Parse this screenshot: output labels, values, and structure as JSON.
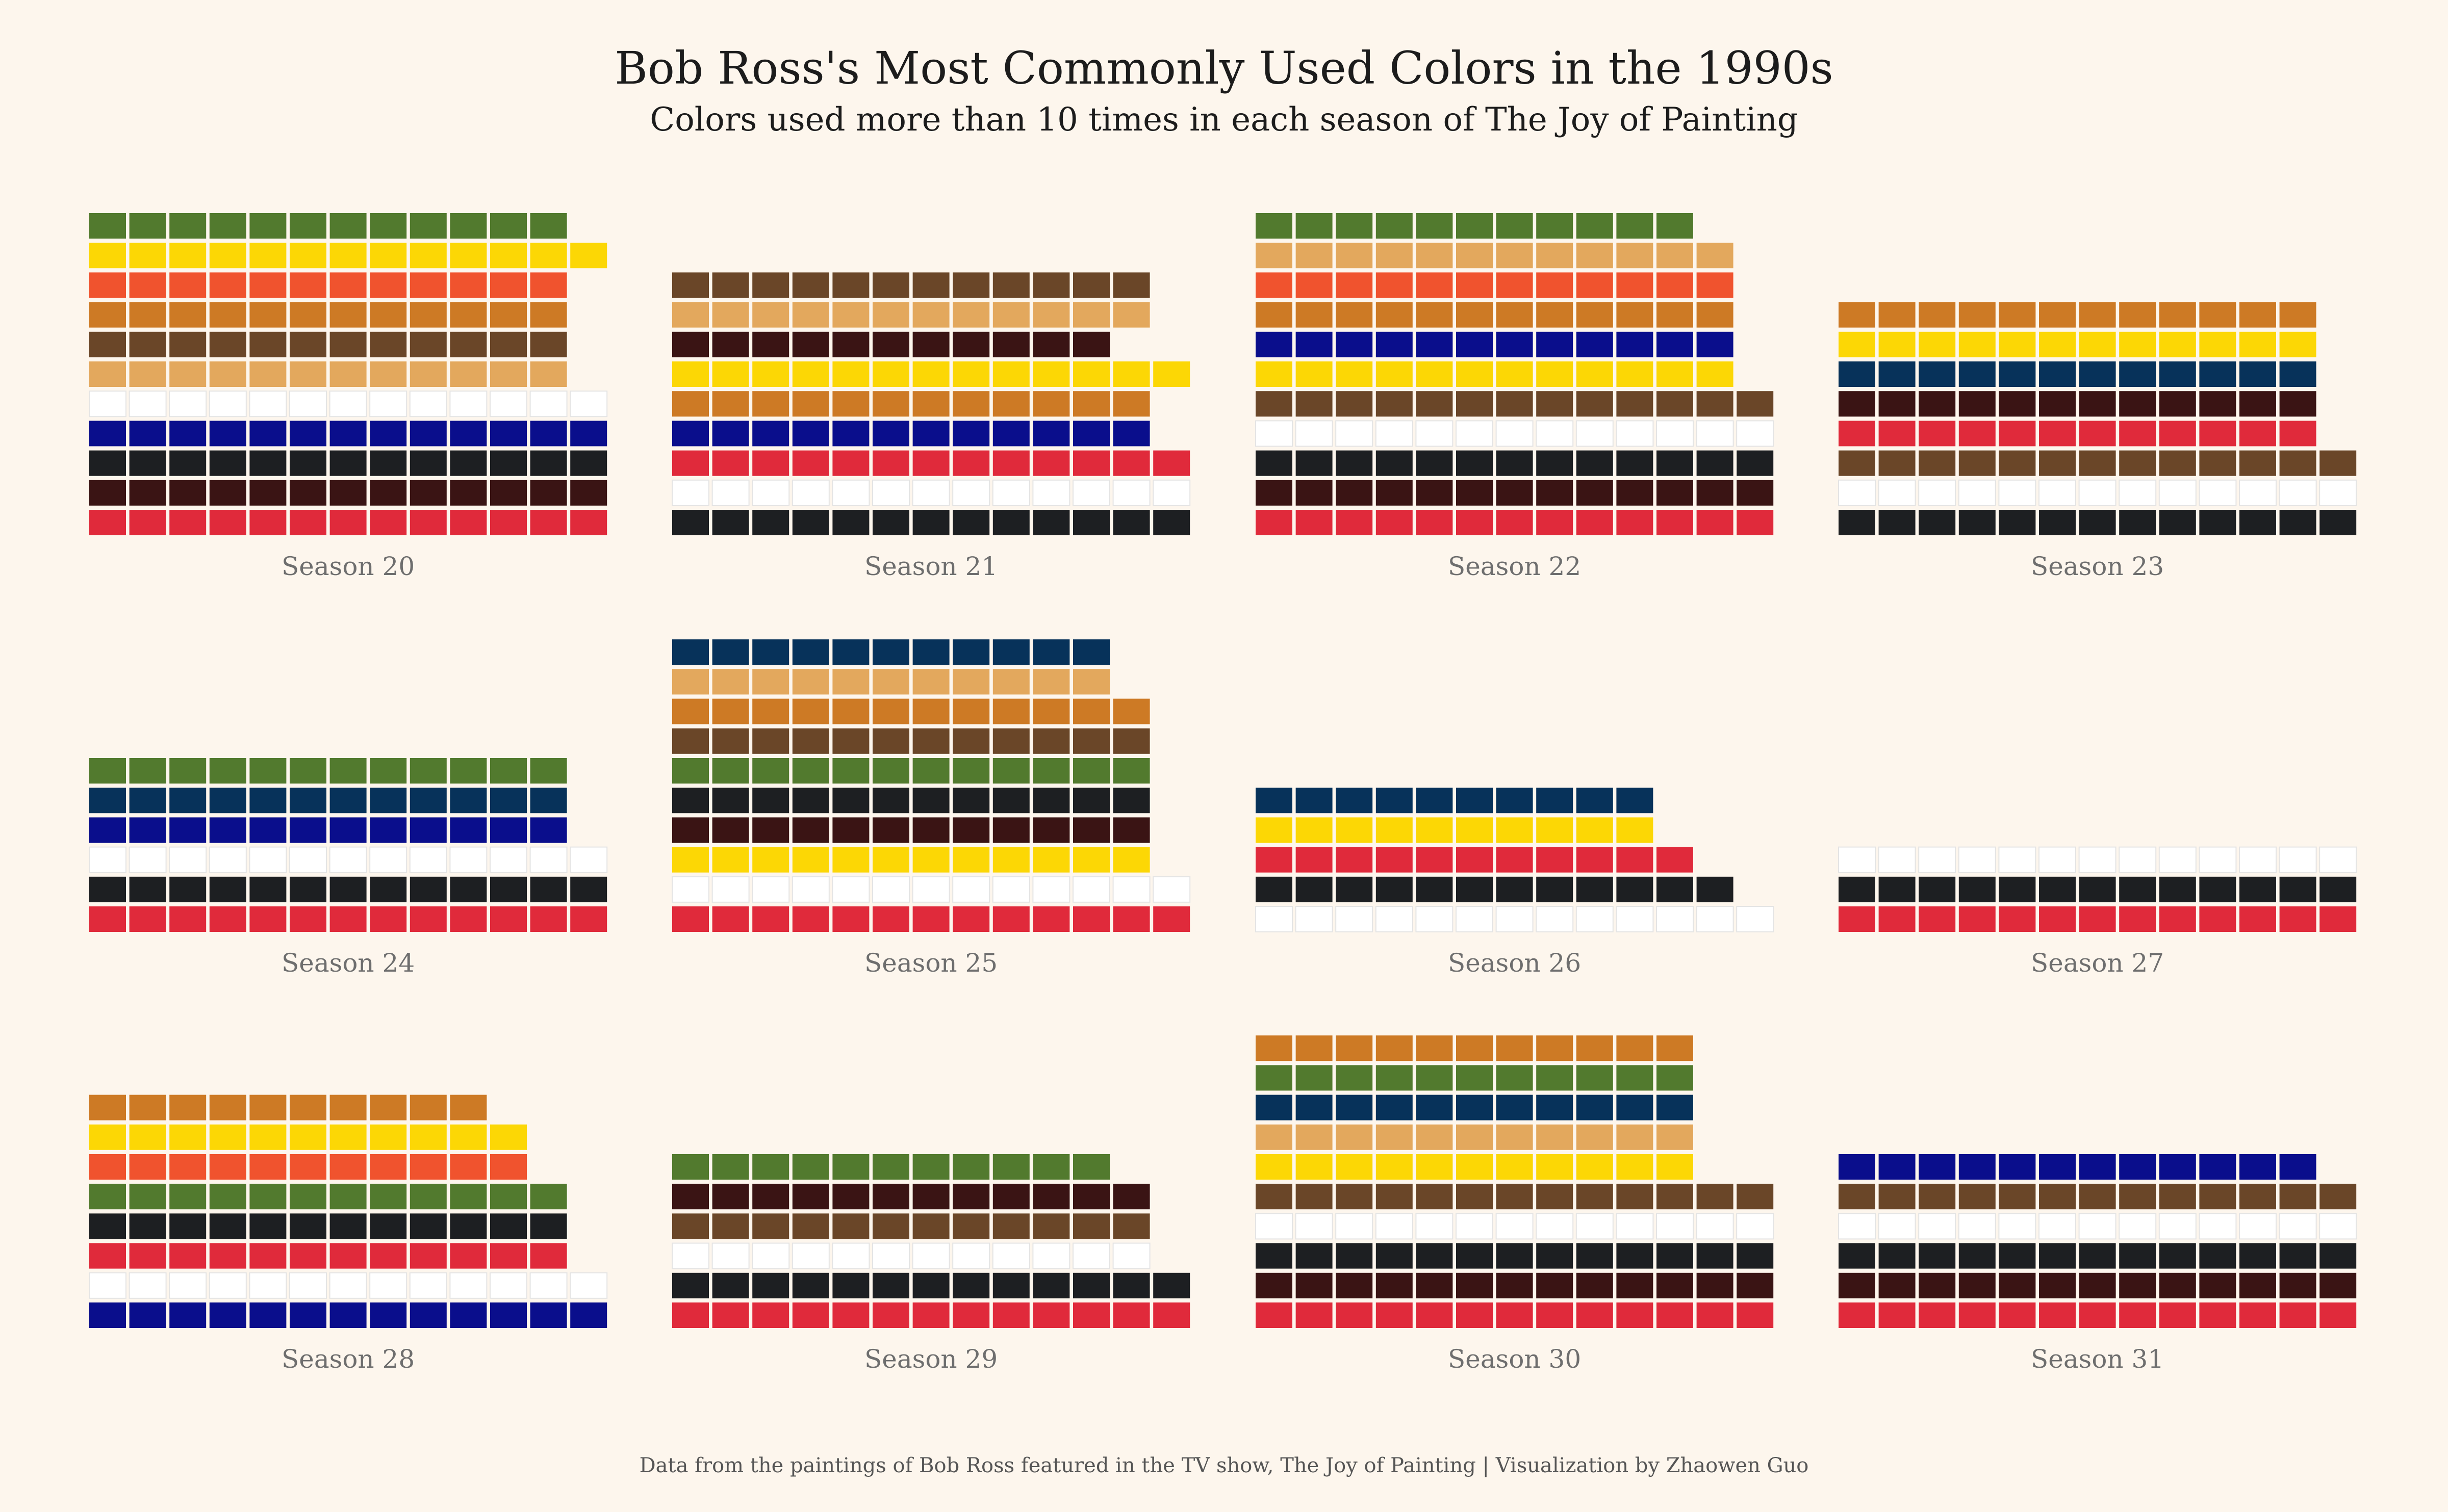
{
  "title": "Bob Ross's Most Commonly Used Colors in the 1990s",
  "subtitle": "Colors used more than 10 times in each season of The Joy of Painting",
  "caption": "Data from the paintings of Bob Ross featured in the TV show, The Joy of Painting | Visualization by Zhaowen Guo",
  "chart_data": {
    "type": "waffle",
    "columns_per_row": 13,
    "colors": {
      "Alizarin Crimson": "#4e1500",
      "Bright Red": "#db0000",
      "Burnt Umber": "#8a3324",
      "Cadmium Yellow": "#ffec00",
      "Dark Sienna": "#5f2e1f",
      "Indian Yellow": "#ffb800",
      "Liquid Black": "#000000",
      "Liquid Clear": "#ffffff",
      "Midnight Black": "#000000",
      "Phthalo Blue": "#0c0040",
      "Phthalo Green": "#102e3c",
      "Prussian Blue": "#021e44",
      "Sap Green": "#0a3410",
      "Titanium White": "#ffffff",
      "Van Dyke Brown": "#221b15",
      "Yellow Ochre": "#c79b00",
      "Black Gesso": "#000000",
      "White": "#ffffff",
      "Black": "#1d1f22",
      "Red": "#e02a3b",
      "Sap": "#527a2e",
      "Yellow": "#fcd705",
      "Orange": "#f0532e",
      "Ochre": "#cd7a25",
      "Brown": "#6a4628",
      "Sand": "#e3a85d",
      "Blue": "#0a0e8c",
      "Navy": "#07325a",
      "Maroon": "#3a1414"
    },
    "seasons": [
      {
        "label": "Season 20",
        "stacks": [
          {
            "color": "Red",
            "count": 13
          },
          {
            "color": "Maroon",
            "count": 13
          },
          {
            "color": "Black",
            "count": 13
          },
          {
            "color": "Blue",
            "count": 13
          },
          {
            "color": "White",
            "count": 13
          },
          {
            "color": "Sand",
            "count": 12
          },
          {
            "color": "Brown",
            "count": 12
          },
          {
            "color": "Ochre",
            "count": 12
          },
          {
            "color": "Orange",
            "count": 12
          },
          {
            "color": "Yellow",
            "count": 13
          },
          {
            "color": "Sap",
            "count": 12
          }
        ]
      },
      {
        "label": "Season 21",
        "stacks": [
          {
            "color": "Black",
            "count": 13
          },
          {
            "color": "White",
            "count": 13
          },
          {
            "color": "Red",
            "count": 13
          },
          {
            "color": "Blue",
            "count": 12
          },
          {
            "color": "Ochre",
            "count": 12
          },
          {
            "color": "Yellow",
            "count": 13
          },
          {
            "color": "Maroon",
            "count": 11
          },
          {
            "color": "Sand",
            "count": 12
          },
          {
            "color": "Brown",
            "count": 12
          }
        ]
      },
      {
        "label": "Season 22",
        "stacks": [
          {
            "color": "Red",
            "count": 13
          },
          {
            "color": "Maroon",
            "count": 13
          },
          {
            "color": "Black",
            "count": 13
          },
          {
            "color": "White",
            "count": 13
          },
          {
            "color": "Brown",
            "count": 13
          },
          {
            "color": "Yellow",
            "count": 12
          },
          {
            "color": "Blue",
            "count": 12
          },
          {
            "color": "Ochre",
            "count": 12
          },
          {
            "color": "Orange",
            "count": 12
          },
          {
            "color": "Sand",
            "count": 12
          },
          {
            "color": "Sap",
            "count": 11
          }
        ]
      },
      {
        "label": "Season 23",
        "stacks": [
          {
            "color": "Black",
            "count": 13
          },
          {
            "color": "White",
            "count": 13
          },
          {
            "color": "Brown",
            "count": 13
          },
          {
            "color": "Red",
            "count": 12
          },
          {
            "color": "Maroon",
            "count": 12
          },
          {
            "color": "Navy",
            "count": 12
          },
          {
            "color": "Yellow",
            "count": 12
          },
          {
            "color": "Ochre",
            "count": 12
          }
        ]
      },
      {
        "label": "Season 24",
        "stacks": [
          {
            "color": "Red",
            "count": 13
          },
          {
            "color": "Black",
            "count": 13
          },
          {
            "color": "White",
            "count": 13
          },
          {
            "color": "Blue",
            "count": 12
          },
          {
            "color": "Navy",
            "count": 12
          },
          {
            "color": "Sap",
            "count": 12
          }
        ]
      },
      {
        "label": "Season 25",
        "stacks": [
          {
            "color": "Red",
            "count": 13
          },
          {
            "color": "White",
            "count": 13
          },
          {
            "color": "Yellow",
            "count": 12
          },
          {
            "color": "Maroon",
            "count": 12
          },
          {
            "color": "Black",
            "count": 12
          },
          {
            "color": "Sap",
            "count": 12
          },
          {
            "color": "Brown",
            "count": 12
          },
          {
            "color": "Ochre",
            "count": 12
          },
          {
            "color": "Sand",
            "count": 11
          },
          {
            "color": "Navy",
            "count": 11
          }
        ]
      },
      {
        "label": "Season 26",
        "stacks": [
          {
            "color": "White",
            "count": 13
          },
          {
            "color": "Black",
            "count": 12
          },
          {
            "color": "Red",
            "count": 11
          },
          {
            "color": "Yellow",
            "count": 10
          },
          {
            "color": "Navy",
            "count": 10
          }
        ]
      },
      {
        "label": "Season 27",
        "stacks": [
          {
            "color": "Red",
            "count": 13
          },
          {
            "color": "Black",
            "count": 13
          },
          {
            "color": "White",
            "count": 13
          }
        ]
      },
      {
        "label": "Season 28",
        "stacks": [
          {
            "color": "Blue",
            "count": 13
          },
          {
            "color": "White",
            "count": 13
          },
          {
            "color": "Red",
            "count": 12
          },
          {
            "color": "Black",
            "count": 12
          },
          {
            "color": "Sap",
            "count": 12
          },
          {
            "color": "Orange",
            "count": 11
          },
          {
            "color": "Yellow",
            "count": 11
          },
          {
            "color": "Ochre",
            "count": 10
          }
        ]
      },
      {
        "label": "Season 29",
        "stacks": [
          {
            "color": "Red",
            "count": 13
          },
          {
            "color": "Black",
            "count": 13
          },
          {
            "color": "White",
            "count": 12
          },
          {
            "color": "Brown",
            "count": 12
          },
          {
            "color": "Maroon",
            "count": 12
          },
          {
            "color": "Sap",
            "count": 11
          }
        ]
      },
      {
        "label": "Season 30",
        "stacks": [
          {
            "color": "Red",
            "count": 13
          },
          {
            "color": "Maroon",
            "count": 13
          },
          {
            "color": "Black",
            "count": 13
          },
          {
            "color": "White",
            "count": 13
          },
          {
            "color": "Brown",
            "count": 13
          },
          {
            "color": "Yellow",
            "count": 11
          },
          {
            "color": "Sand",
            "count": 11
          },
          {
            "color": "Navy",
            "count": 11
          },
          {
            "color": "Sap",
            "count": 11
          },
          {
            "color": "Ochre",
            "count": 11
          }
        ]
      },
      {
        "label": "Season 31",
        "stacks": [
          {
            "color": "Red",
            "count": 13
          },
          {
            "color": "Maroon",
            "count": 13
          },
          {
            "color": "Black",
            "count": 13
          },
          {
            "color": "White",
            "count": 13
          },
          {
            "color": "Brown",
            "count": 13
          },
          {
            "color": "Blue",
            "count": 12
          }
        ]
      }
    ]
  }
}
